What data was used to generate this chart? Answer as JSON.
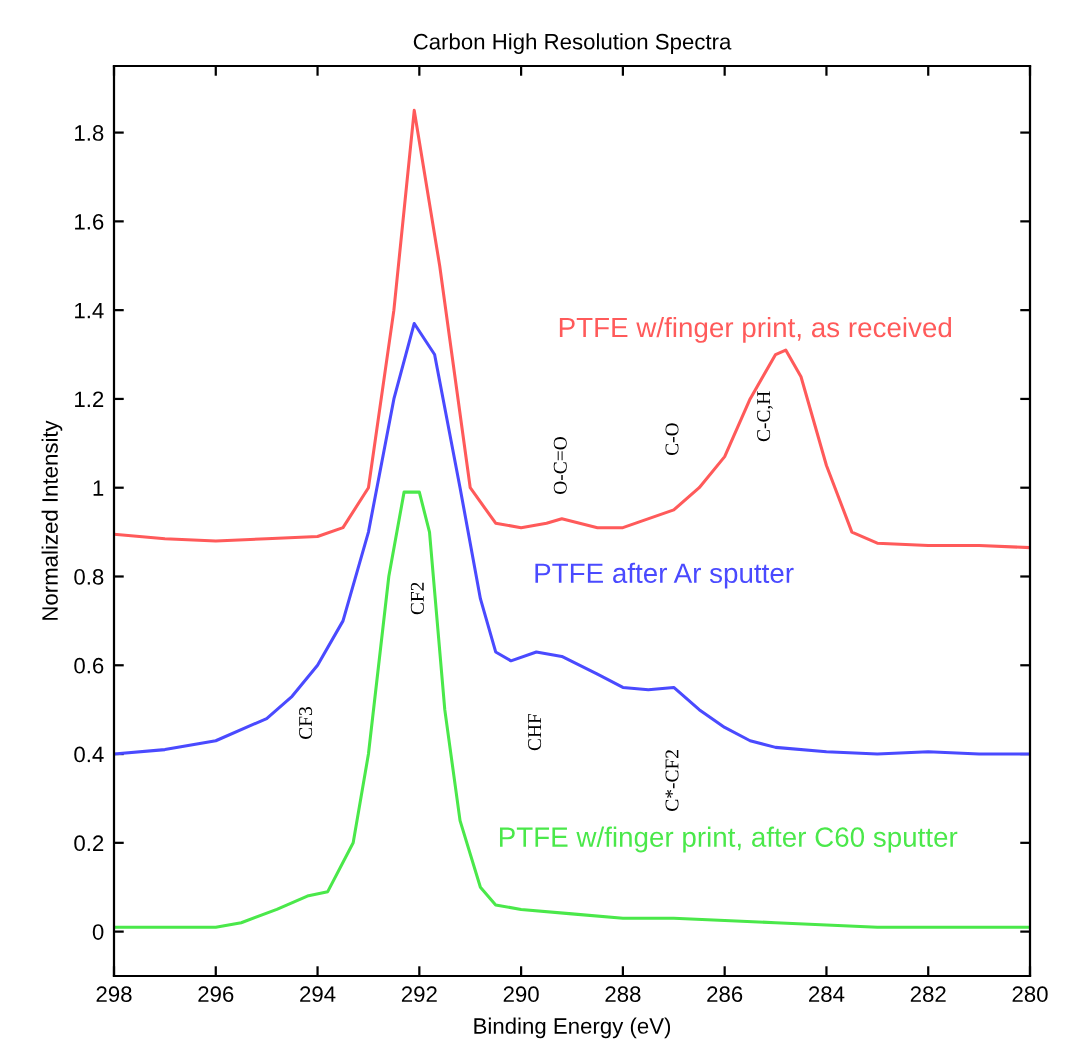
{
  "chart_data": {
    "type": "line",
    "title": "Carbon High Resolution Spectra",
    "xlabel": "Binding Energy (eV)",
    "ylabel": "Normalized Intensity",
    "xlim": [
      298,
      280
    ],
    "xticks": [
      298,
      296,
      294,
      292,
      290,
      288,
      286,
      284,
      282,
      280
    ],
    "ylim": [
      -0.1,
      1.95
    ],
    "yticks": [
      0,
      0.2,
      0.4,
      0.6,
      0.8,
      1,
      1.2,
      1.4,
      1.6,
      1.8
    ],
    "grid": false,
    "legend": false,
    "marker": "none",
    "line_style": "solid",
    "series": [
      {
        "name": "PTFE w/finger print, as received",
        "color": "#ff5a5a",
        "x": [
          298,
          297,
          296,
          295,
          294,
          293.5,
          293,
          292.5,
          292.1,
          291.6,
          291,
          290.5,
          290,
          289.5,
          289.2,
          288.5,
          288,
          287,
          286.5,
          286,
          285.5,
          285,
          284.8,
          284.5,
          284,
          283.5,
          283,
          282,
          281,
          280
        ],
        "values": [
          0.895,
          0.885,
          0.88,
          0.885,
          0.89,
          0.91,
          1.0,
          1.4,
          1.85,
          1.5,
          1.0,
          0.92,
          0.91,
          0.92,
          0.93,
          0.91,
          0.91,
          0.95,
          1.0,
          1.07,
          1.2,
          1.3,
          1.31,
          1.25,
          1.05,
          0.9,
          0.875,
          0.87,
          0.87,
          0.865
        ]
      },
      {
        "name": "PTFE after Ar sputter",
        "color": "#4a4aff",
        "x": [
          298,
          297,
          296,
          295,
          294.5,
          294,
          293.5,
          293,
          292.5,
          292.1,
          291.7,
          291.2,
          290.8,
          290.5,
          290.2,
          289.7,
          289.2,
          288.5,
          288,
          287.5,
          287,
          286.5,
          286,
          285.5,
          285,
          284,
          283,
          282,
          281,
          280
        ],
        "values": [
          0.4,
          0.41,
          0.43,
          0.48,
          0.53,
          0.6,
          0.7,
          0.9,
          1.2,
          1.37,
          1.3,
          1.0,
          0.75,
          0.63,
          0.61,
          0.63,
          0.62,
          0.58,
          0.55,
          0.545,
          0.55,
          0.5,
          0.46,
          0.43,
          0.415,
          0.405,
          0.4,
          0.405,
          0.4,
          0.4
        ]
      },
      {
        "name": "PTFE w/finger print, after C60 sputter",
        "color": "#4ae84a",
        "x": [
          298,
          296,
          295.5,
          294.8,
          294.2,
          293.8,
          293.3,
          293,
          292.6,
          292.3,
          292,
          291.8,
          291.5,
          291.2,
          290.8,
          290.5,
          290,
          289,
          288,
          287,
          286,
          285,
          284,
          283,
          282,
          281,
          280
        ],
        "values": [
          0.01,
          0.01,
          0.02,
          0.05,
          0.08,
          0.09,
          0.2,
          0.4,
          0.8,
          0.99,
          0.99,
          0.9,
          0.5,
          0.25,
          0.1,
          0.06,
          0.05,
          0.04,
          0.03,
          0.03,
          0.025,
          0.02,
          0.015,
          0.01,
          0.01,
          0.01,
          0.01
        ]
      }
    ],
    "annotations": [
      "O-C=O",
      "C-O",
      "C-C,H",
      "CF2",
      "CF3",
      "CHF",
      "C*-CF2"
    ]
  }
}
